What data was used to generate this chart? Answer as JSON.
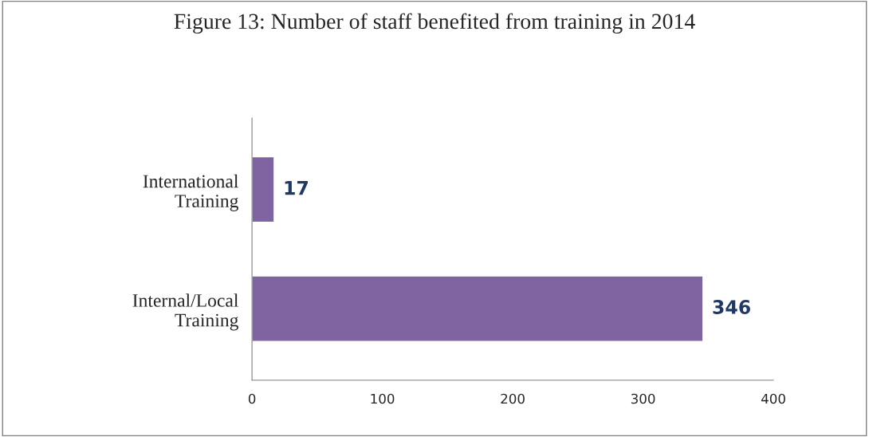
{
  "chart_data": {
    "type": "bar",
    "orientation": "horizontal",
    "title": "Figure 13: Number of staff benefited from training in 2014",
    "categories": [
      "International\nTraining",
      "Internal/Local\nTraining"
    ],
    "values": [
      17,
      346
    ],
    "color": "#8064a2",
    "xlim": [
      0,
      400
    ],
    "xticks": [
      0,
      100,
      200,
      300,
      400
    ],
    "data_labels": true,
    "grid": false
  }
}
